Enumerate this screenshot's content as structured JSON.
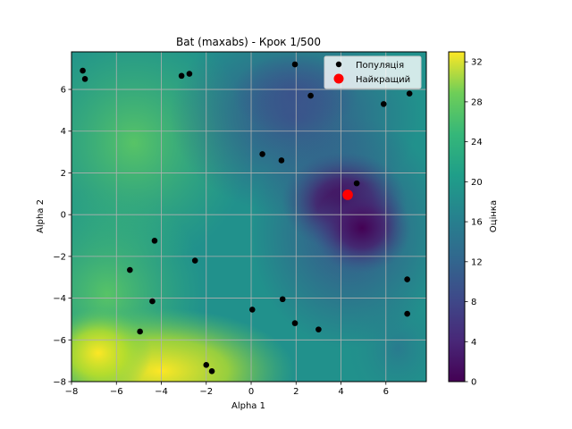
{
  "chart_data": {
    "type": "scatter",
    "title": "Bat (maxabs) - Крок 1/500",
    "xlabel": "Alpha 1",
    "ylabel": "Alpha 2",
    "xlim": [
      -8,
      7.8
    ],
    "ylim": [
      -8,
      7.8
    ],
    "xticks": [
      -8,
      -6,
      -4,
      -2,
      0,
      2,
      4,
      6
    ],
    "yticks": [
      -8,
      -6,
      -4,
      -2,
      0,
      2,
      4,
      6
    ],
    "grid": true,
    "legend_position": "top-right",
    "background": "filled contour of objective value (viridis colormap)",
    "colorbar": {
      "label": "Оцінка",
      "range": [
        0,
        33
      ],
      "ticks": [
        0,
        4,
        8,
        12,
        16,
        20,
        24,
        28,
        32
      ],
      "colormap": "viridis"
    },
    "series": [
      {
        "name": "Популяція",
        "color": "#000000",
        "points": [
          [
            -7.5,
            6.9
          ],
          [
            -7.4,
            6.5
          ],
          [
            -3.1,
            6.65
          ],
          [
            -2.75,
            6.75
          ],
          [
            1.95,
            7.2
          ],
          [
            2.65,
            5.7
          ],
          [
            5.9,
            5.3
          ],
          [
            7.05,
            5.8
          ],
          [
            0.5,
            2.9
          ],
          [
            1.35,
            2.6
          ],
          [
            4.7,
            1.5
          ],
          [
            -4.3,
            -1.25
          ],
          [
            -2.5,
            -2.2
          ],
          [
            -5.4,
            -2.65
          ],
          [
            -4.4,
            -4.15
          ],
          [
            -4.95,
            -5.6
          ],
          [
            0.05,
            -4.55
          ],
          [
            1.4,
            -4.05
          ],
          [
            1.95,
            -5.2
          ],
          [
            3.0,
            -5.5
          ],
          [
            6.95,
            -3.1
          ],
          [
            6.95,
            -4.75
          ],
          [
            -2.0,
            -7.2
          ],
          [
            -1.75,
            -7.5
          ]
        ]
      },
      {
        "name": "Найкращий",
        "color": "#ff0000",
        "points": [
          [
            4.3,
            0.95
          ]
        ]
      }
    ]
  }
}
